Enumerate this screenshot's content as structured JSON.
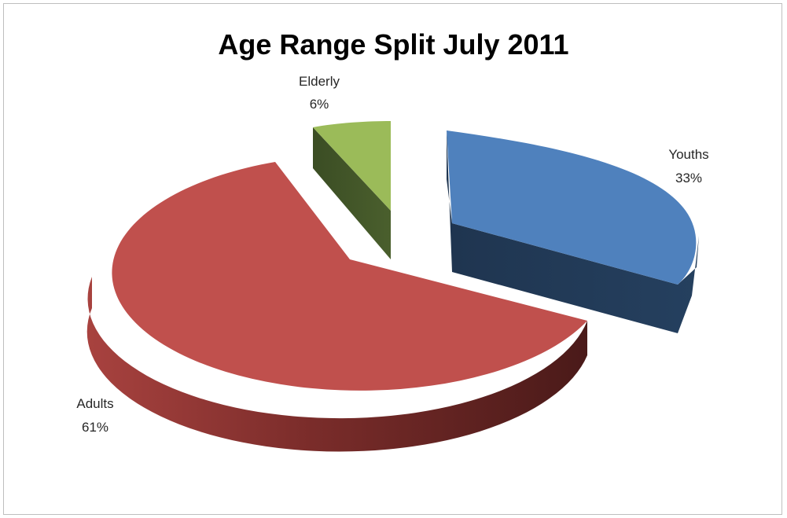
{
  "chart_data": {
    "type": "pie",
    "variant": "3d-exploded",
    "title": "Age Range Split July 2011",
    "slices": [
      {
        "name": "Youths",
        "value": 33,
        "label": "33%",
        "color": "#4f81bd"
      },
      {
        "name": "Adults",
        "value": 61,
        "label": "61%",
        "color": "#c0504d"
      },
      {
        "name": "Elderly",
        "value": 6,
        "label": "6%",
        "color": "#9bbb59"
      }
    ],
    "legend": "none"
  }
}
